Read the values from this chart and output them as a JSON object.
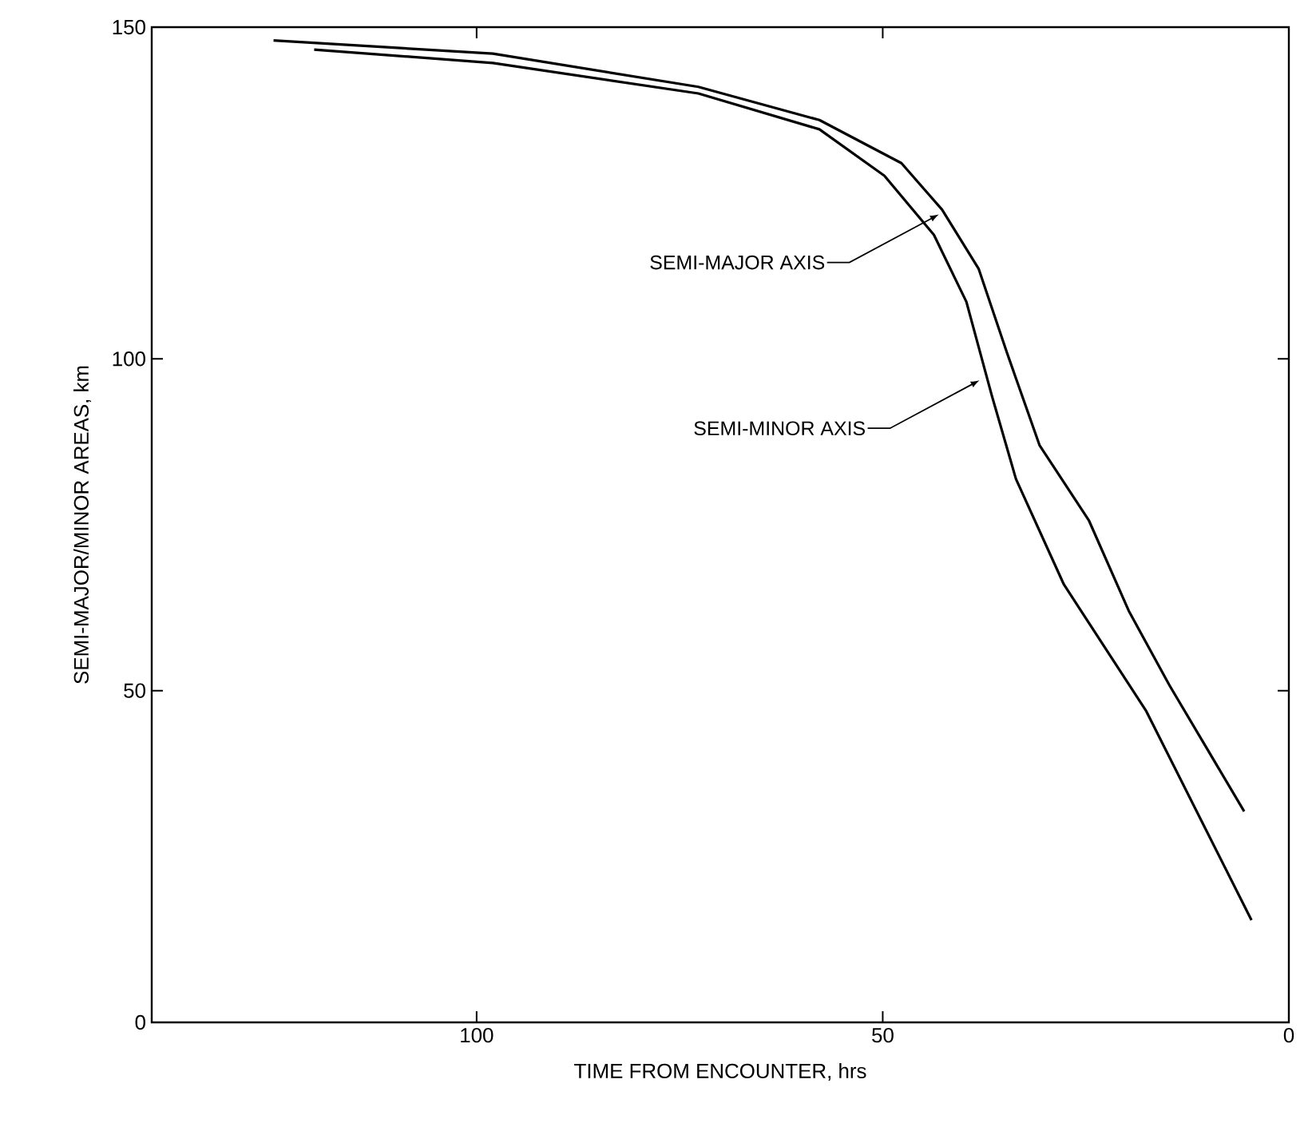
{
  "chart_data": {
    "type": "line",
    "xlabel": "TIME FROM ENCOUNTER, hrs",
    "ylabel": "SEMI-MAJOR/MINOR AREAS, km",
    "xlim": [
      140,
      0
    ],
    "xticks": [
      100,
      50,
      0
    ],
    "ylim": [
      0,
      150
    ],
    "yticks": [
      0,
      50,
      100,
      150
    ],
    "series": [
      {
        "color": "#000000",
        "x": [
          125,
          98,
          72.7,
          57.8,
          47.7,
          42.7,
          38.2,
          34.7,
          30.7,
          24.6,
          19.7,
          14.7,
          5.5
        ],
        "values": [
          148,
          146,
          141,
          136,
          129.5,
          122.5,
          113.6,
          100.9,
          87,
          75.6,
          62,
          50.8,
          31.8
        ]
      },
      {
        "color": "#000000",
        "x": [
          120,
          98,
          72.7,
          57.8,
          49.8,
          43.7,
          39.7,
          36.6,
          33.6,
          27.7,
          17.6,
          4.6
        ],
        "values": [
          146.6,
          144.6,
          140,
          134.6,
          127.6,
          118.7,
          108.6,
          94.6,
          81.9,
          66,
          47,
          15.4
        ]
      }
    ],
    "annotations": [
      {
        "text": "SEMI-MAJOR AXIS",
        "x": 42.7,
        "y": 122
      },
      {
        "text": "SEMI-MINOR AXIS",
        "x": 37.7,
        "y": 97
      }
    ],
    "grid": false,
    "marker": "none",
    "line_style": "solid"
  }
}
